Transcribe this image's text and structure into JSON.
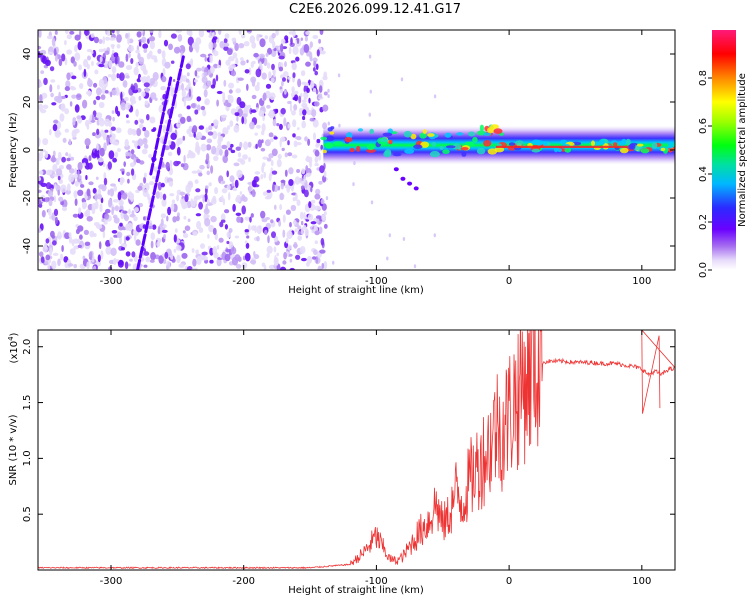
{
  "figure": {
    "title": "C2E6.2026.099.12.41.G17"
  },
  "chart_data": [
    {
      "type": "heatmap",
      "title": "C2E6.2026.099.12.41.G17",
      "xlabel": "Height of straight line (km)",
      "ylabel": "Frequency (Hz)",
      "xlim": [
        -355,
        125
      ],
      "ylim": [
        -50,
        50
      ],
      "xticks": [
        -300,
        -200,
        -100,
        0,
        100
      ],
      "xtick_labels": [
        "-300",
        "-200",
        "-100",
        "0",
        "100"
      ],
      "yticks": [
        -40,
        -20,
        0,
        20,
        40
      ],
      "ytick_labels": [
        "-40",
        "-20",
        "0",
        "20",
        "40"
      ],
      "grid": false,
      "colorbar": {
        "label": "Normalized spectral amplitude",
        "range": [
          0,
          1
        ],
        "ticks": [
          0,
          0.2,
          0.4,
          0.6,
          0.8
        ],
        "tick_labels": [
          "0.0",
          "0.2",
          "0.4",
          "0.6",
          "0.8"
        ],
        "colormap": "rainbow (white/lavender low, violet, blue, cyan, green, yellow, red, magenta high)"
      },
      "features": {
        "noise_region_x": [
          -355,
          -138
        ],
        "noise_amplitude": "0.05-0.3",
        "signal_band_x": [
          -140,
          125
        ],
        "signal_center_freq": [
          5,
          1
        ],
        "signal_peak_amplitude": 0.9,
        "diagonal_streaks": [
          {
            "x": [
              -280,
              -245
            ],
            "y": [
              -50,
              40
            ]
          },
          {
            "x": [
              -270,
              -255
            ],
            "y": [
              -10,
              30
            ]
          }
        ]
      }
    },
    {
      "type": "line",
      "xlabel": "Height of straight line (km)",
      "ylabel": "SNR (10 * v/v)",
      "y_multiplier": "(x10",
      "y_multiplier_exp": "4",
      "y_multiplier_close": ")",
      "xlim": [
        -355,
        125
      ],
      "ylim": [
        0,
        2.15
      ],
      "xticks": [
        -300,
        -200,
        -100,
        0,
        100
      ],
      "xtick_labels": [
        "-300",
        "-200",
        "-100",
        "0",
        "100"
      ],
      "yticks": [
        0.5,
        1.0,
        1.5,
        2.0
      ],
      "ytick_labels": [
        "0.5",
        "1.0",
        "1.5",
        "2.0"
      ],
      "grid": false,
      "series": [
        {
          "name": "SNR",
          "color": "#ee3333",
          "x": [
            -355,
            -300,
            -250,
            -200,
            -150,
            -120,
            -110,
            -100,
            -95,
            -90,
            -85,
            -80,
            -70,
            -60,
            -55,
            -50,
            -45,
            -40,
            -35,
            -30,
            -25,
            -20,
            -15,
            -10,
            -5,
            0,
            5,
            10,
            15,
            20,
            25,
            30,
            40,
            50,
            60,
            70,
            80,
            90,
            95,
            100,
            105,
            110,
            115,
            120,
            125
          ],
          "values": [
            0.02,
            0.02,
            0.02,
            0.02,
            0.02,
            0.05,
            0.15,
            0.3,
            0.2,
            0.1,
            0.08,
            0.12,
            0.3,
            0.45,
            0.6,
            0.4,
            0.5,
            0.7,
            0.6,
            0.8,
            0.9,
            1.0,
            1.1,
            1.3,
            1.25,
            1.4,
            1.55,
            1.68,
            1.78,
            1.84,
            1.86,
            1.87,
            1.87,
            1.86,
            1.86,
            1.85,
            1.85,
            1.83,
            1.82,
            1.8,
            1.75,
            1.78,
            1.75,
            1.8,
            1.8
          ]
        }
      ]
    }
  ],
  "colors": {
    "snr_line": "#ee3333",
    "axes": "#000000",
    "background": "#ffffff"
  }
}
